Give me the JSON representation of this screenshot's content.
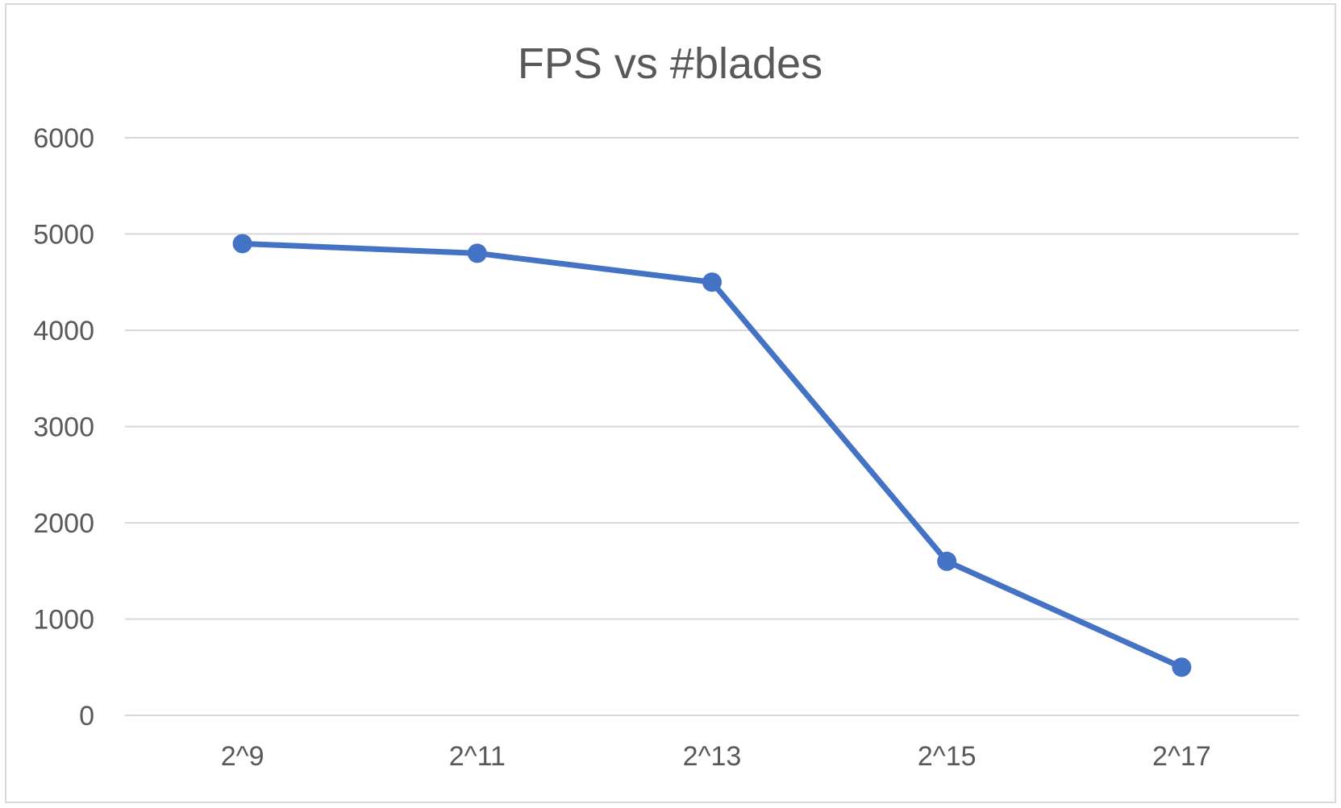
{
  "chart_data": {
    "type": "line",
    "title": "FPS vs #blades",
    "xlabel": "",
    "ylabel": "",
    "categories": [
      "2^9",
      "2^11",
      "2^13",
      "2^15",
      "2^17"
    ],
    "series": [
      {
        "values": [
          4900,
          4800,
          4500,
          1600,
          500
        ]
      }
    ],
    "ylim": [
      0,
      6000
    ],
    "yticks": [
      0,
      1000,
      2000,
      3000,
      4000,
      5000,
      6000
    ],
    "grid": "horizontal",
    "legend": "none",
    "colors": {
      "line": "#4472C4",
      "grid": "#d9d9d9",
      "text": "#595959",
      "border": "#d9d9d9"
    }
  }
}
